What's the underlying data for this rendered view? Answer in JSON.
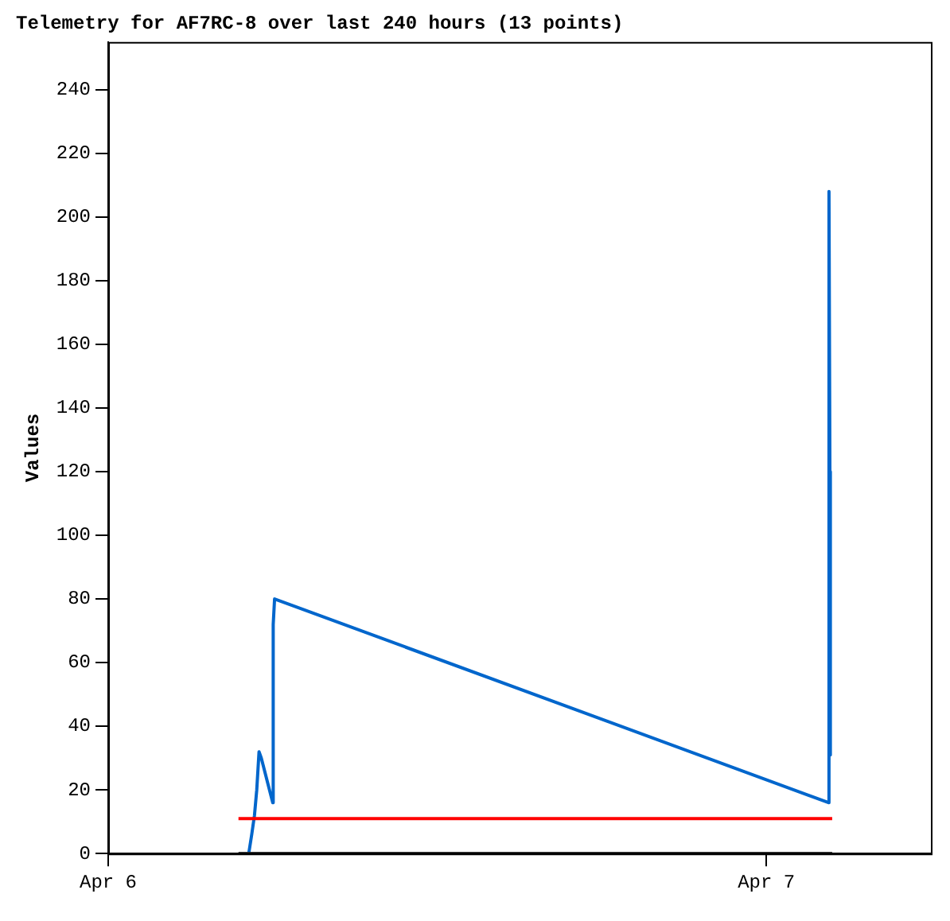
{
  "chart_data": {
    "type": "line",
    "title": "Telemetry for AF7RC-8 over last 240 hours (13 points)",
    "ylabel": "Values",
    "xlim": [
      "--04-06T00:00",
      "--04-07T06:00"
    ],
    "xticks": [
      {
        "value": "--04-06",
        "label": "Apr 6"
      },
      {
        "value": "--04-07",
        "label": "Apr 7"
      }
    ],
    "ylim": [
      0,
      255
    ],
    "yticks": [
      0,
      20,
      40,
      60,
      80,
      100,
      120,
      140,
      160,
      180,
      200,
      220,
      240
    ],
    "grid": false,
    "legend": false,
    "marker": "none",
    "line_style": "solid",
    "series": [
      {
        "color": "#000000",
        "x": [
          "--04-06T04:45",
          "--04-07T02:24"
        ],
        "values": [
          0,
          0
        ]
      },
      {
        "color": "#ff0000",
        "x": [
          "--04-06T04:45",
          "--04-07T02:24"
        ],
        "values": [
          11,
          11
        ]
      },
      {
        "color": "#0066cc",
        "x": [
          "--04-06T05:08",
          "--04-06T05:14",
          "--04-06T05:20",
          "--04-06T05:25",
          "--04-06T05:30",
          "--04-06T05:35",
          "--04-06T06:00",
          "--04-06T06:01",
          "--04-06T06:04",
          "--04-07T02:16",
          "--04-07T02:17",
          "--04-07T02:19",
          "--04-07T02:20"
        ],
        "values": [
          0.5,
          6,
          12,
          20,
          32,
          30,
          16,
          72,
          80,
          16,
          208,
          120,
          31
        ]
      }
    ]
  }
}
